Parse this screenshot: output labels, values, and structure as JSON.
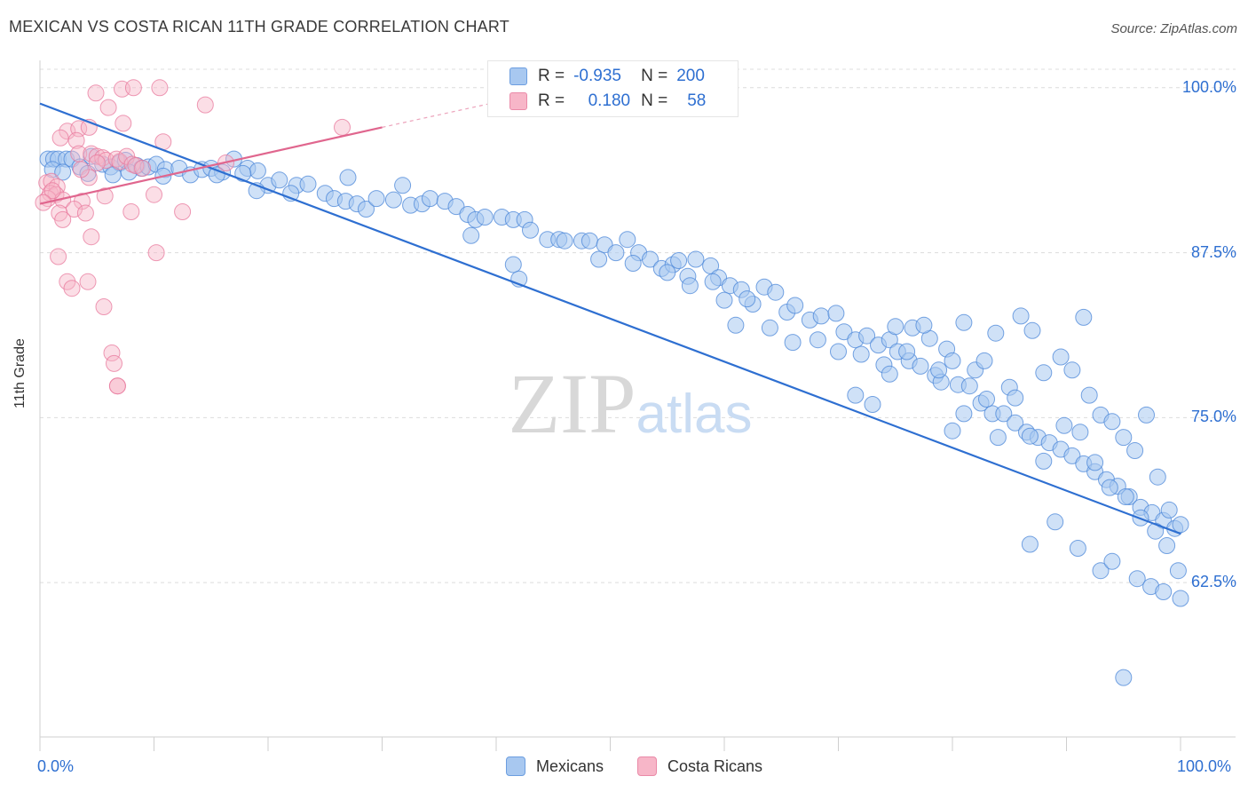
{
  "title": "MEXICAN VS COSTA RICAN 11TH GRADE CORRELATION CHART",
  "source": "Source: ZipAtlas.com",
  "watermark": "ZIPatlas",
  "legend": {
    "rows": [
      {
        "r_label": "R =",
        "r_value": "-0.935",
        "n_label": "N =",
        "n_value": "200",
        "color": "#a8c8f0"
      },
      {
        "r_label": "R =",
        "r_value": "0.180",
        "n_label": "N =",
        "n_value": "58",
        "color": "#f7b6c8"
      }
    ]
  },
  "bottom_legend": [
    {
      "label": "Mexicans",
      "color": "#a8c8f0"
    },
    {
      "label": "Costa Ricans",
      "color": "#f7b6c8"
    }
  ],
  "chart_data": {
    "type": "scatter",
    "title": "MEXICAN VS COSTA RICAN 11TH GRADE CORRELATION CHART",
    "xlabel": "",
    "ylabel": "11th Grade",
    "xlim": [
      0,
      100
    ],
    "ylim": [
      50.8,
      101.4
    ],
    "x_tick_labels": [
      "0.0%",
      "100.0%"
    ],
    "y_ticks": [
      62.5,
      75.0,
      87.5,
      100.0
    ],
    "y_tick_labels": [
      "62.5%",
      "75.0%",
      "87.5%",
      "100.0%"
    ],
    "grid": true,
    "legend_position": "top-center",
    "series": [
      {
        "name": "Mexicans",
        "color": "#4a86d8",
        "fill": "#a8c8f0",
        "r": -0.935,
        "n": 200,
        "trend": {
          "x": [
            0,
            100
          ],
          "y": [
            98.8,
            66.2
          ]
        },
        "points": [
          [
            0.7,
            94.6
          ],
          [
            1.2,
            94.6
          ],
          [
            1.6,
            94.6
          ],
          [
            2.3,
            94.6
          ],
          [
            2.8,
            94.6
          ],
          [
            4.5,
            94.8
          ],
          [
            1.1,
            93.8
          ],
          [
            3.5,
            94.0
          ],
          [
            5.5,
            94.2
          ],
          [
            6.2,
            94.0
          ],
          [
            7.0,
            94.3
          ],
          [
            7.5,
            94.5
          ],
          [
            8.5,
            94.1
          ],
          [
            8.9,
            93.9
          ],
          [
            9.5,
            94.0
          ],
          [
            10.2,
            94.2
          ],
          [
            11.0,
            93.8
          ],
          [
            12.2,
            93.9
          ],
          [
            10.8,
            93.3
          ],
          [
            13.2,
            93.4
          ],
          [
            14.2,
            93.8
          ],
          [
            15.0,
            93.9
          ],
          [
            16.0,
            93.6
          ],
          [
            17.0,
            94.6
          ],
          [
            18.2,
            93.9
          ],
          [
            19.1,
            93.7
          ],
          [
            17.8,
            93.5
          ],
          [
            7.8,
            93.6
          ],
          [
            4.2,
            93.5
          ],
          [
            6.4,
            93.4
          ],
          [
            2.0,
            93.6
          ],
          [
            15.5,
            93.4
          ],
          [
            20.0,
            92.6
          ],
          [
            21.0,
            93.0
          ],
          [
            22.5,
            92.6
          ],
          [
            23.5,
            92.7
          ],
          [
            22.0,
            92.0
          ],
          [
            19.0,
            92.2
          ],
          [
            25.0,
            92.0
          ],
          [
            25.8,
            91.6
          ],
          [
            26.8,
            91.4
          ],
          [
            27.8,
            91.2
          ],
          [
            28.6,
            90.8
          ],
          [
            29.5,
            91.6
          ],
          [
            31.0,
            91.5
          ],
          [
            32.5,
            91.1
          ],
          [
            31.8,
            92.6
          ],
          [
            33.5,
            91.2
          ],
          [
            34.2,
            91.6
          ],
          [
            35.5,
            91.4
          ],
          [
            36.5,
            91.0
          ],
          [
            37.5,
            90.4
          ],
          [
            38.2,
            90.0
          ],
          [
            39.0,
            90.2
          ],
          [
            40.5,
            90.2
          ],
          [
            41.5,
            90.0
          ],
          [
            42.5,
            90.0
          ],
          [
            43.0,
            89.2
          ],
          [
            44.5,
            88.5
          ],
          [
            45.5,
            88.5
          ],
          [
            46.0,
            88.4
          ],
          [
            47.5,
            88.4
          ],
          [
            48.2,
            88.4
          ],
          [
            49.5,
            88.1
          ],
          [
            50.5,
            87.5
          ],
          [
            51.5,
            88.5
          ],
          [
            52.5,
            87.5
          ],
          [
            53.5,
            87.0
          ],
          [
            54.5,
            86.3
          ],
          [
            55.5,
            86.6
          ],
          [
            56.0,
            86.9
          ],
          [
            57.5,
            87.0
          ],
          [
            56.8,
            85.7
          ],
          [
            58.8,
            86.5
          ],
          [
            59.5,
            85.6
          ],
          [
            60.5,
            85.0
          ],
          [
            60.0,
            83.9
          ],
          [
            61.5,
            84.7
          ],
          [
            62.5,
            83.6
          ],
          [
            63.5,
            84.9
          ],
          [
            64.5,
            84.5
          ],
          [
            65.5,
            83.0
          ],
          [
            66.2,
            83.5
          ],
          [
            67.5,
            82.4
          ],
          [
            68.5,
            82.7
          ],
          [
            69.8,
            82.9
          ],
          [
            70.5,
            81.5
          ],
          [
            71.5,
            80.9
          ],
          [
            72.5,
            81.2
          ],
          [
            73.5,
            80.5
          ],
          [
            74.5,
            80.9
          ],
          [
            75.2,
            80.0
          ],
          [
            76.2,
            79.3
          ],
          [
            77.2,
            78.9
          ],
          [
            78.5,
            78.2
          ],
          [
            79.0,
            77.7
          ],
          [
            80.5,
            77.5
          ],
          [
            81.5,
            77.4
          ],
          [
            82.5,
            76.1
          ],
          [
            83.5,
            75.3
          ],
          [
            84.5,
            75.3
          ],
          [
            85.5,
            74.6
          ],
          [
            86.5,
            73.9
          ],
          [
            87.5,
            73.5
          ],
          [
            88.5,
            73.1
          ],
          [
            89.5,
            72.6
          ],
          [
            90.5,
            72.1
          ],
          [
            91.5,
            71.5
          ],
          [
            92.5,
            70.9
          ],
          [
            93.5,
            70.3
          ],
          [
            94.5,
            69.8
          ],
          [
            95.5,
            69.0
          ],
          [
            96.5,
            68.2
          ],
          [
            97.5,
            67.8
          ],
          [
            98.5,
            67.2
          ],
          [
            99.5,
            66.6
          ],
          [
            27.0,
            93.2
          ],
          [
            37.8,
            88.8
          ],
          [
            41.5,
            86.6
          ],
          [
            42.0,
            85.5
          ],
          [
            49.0,
            87.0
          ],
          [
            52.0,
            86.7
          ],
          [
            55.0,
            86.0
          ],
          [
            57.0,
            85.0
          ],
          [
            59.0,
            85.3
          ],
          [
            61.0,
            82.0
          ],
          [
            62.0,
            84.0
          ],
          [
            64.0,
            81.8
          ],
          [
            66.0,
            80.7
          ],
          [
            68.2,
            80.9
          ],
          [
            70.0,
            80.0
          ],
          [
            72.0,
            79.8
          ],
          [
            74.0,
            79.0
          ],
          [
            75.0,
            81.9
          ],
          [
            76.5,
            81.8
          ],
          [
            78.0,
            81.0
          ],
          [
            79.5,
            80.2
          ],
          [
            80.0,
            79.3
          ],
          [
            81.0,
            82.2
          ],
          [
            82.0,
            78.6
          ],
          [
            82.8,
            79.3
          ],
          [
            83.8,
            81.4
          ],
          [
            85.0,
            77.3
          ],
          [
            86.0,
            82.7
          ],
          [
            87.0,
            81.6
          ],
          [
            88.0,
            78.4
          ],
          [
            89.5,
            79.6
          ],
          [
            90.5,
            78.6
          ],
          [
            91.5,
            82.6
          ],
          [
            92.0,
            76.7
          ],
          [
            93.0,
            75.2
          ],
          [
            94.0,
            74.7
          ],
          [
            95.0,
            73.5
          ],
          [
            96.0,
            72.5
          ],
          [
            97.0,
            75.2
          ],
          [
            98.0,
            70.5
          ],
          [
            99.0,
            68.0
          ],
          [
            100.0,
            66.9
          ],
          [
            71.5,
            76.7
          ],
          [
            73.0,
            76.0
          ],
          [
            74.5,
            78.3
          ],
          [
            76.0,
            80.0
          ],
          [
            77.5,
            82.0
          ],
          [
            78.8,
            78.6
          ],
          [
            80.0,
            74.0
          ],
          [
            81.0,
            75.3
          ],
          [
            83.0,
            76.4
          ],
          [
            84.0,
            73.5
          ],
          [
            85.5,
            76.5
          ],
          [
            86.8,
            73.6
          ],
          [
            88.0,
            71.7
          ],
          [
            89.8,
            74.4
          ],
          [
            91.2,
            73.9
          ],
          [
            92.5,
            71.6
          ],
          [
            93.8,
            69.7
          ],
          [
            95.2,
            69.0
          ],
          [
            96.5,
            67.4
          ],
          [
            97.8,
            66.4
          ],
          [
            98.8,
            65.3
          ],
          [
            99.8,
            63.4
          ],
          [
            100.0,
            61.3
          ],
          [
            95.0,
            55.3
          ],
          [
            86.8,
            65.4
          ],
          [
            89.0,
            67.1
          ],
          [
            91.0,
            65.1
          ],
          [
            93.0,
            63.4
          ],
          [
            94.0,
            64.1
          ],
          [
            96.2,
            62.8
          ],
          [
            97.4,
            62.2
          ],
          [
            98.5,
            61.8
          ]
        ]
      },
      {
        "name": "Costa Ricans",
        "color": "#e8789c",
        "fill": "#f7b6c8",
        "r": 0.18,
        "n": 58,
        "trend": {
          "x": [
            0,
            30
          ],
          "y": [
            91.2,
            97.0
          ]
        },
        "trend_dashed": {
          "x": [
            30,
            40
          ],
          "y": [
            97.0,
            98.9
          ]
        },
        "points": [
          [
            4.9,
            99.6
          ],
          [
            6.0,
            98.5
          ],
          [
            7.3,
            97.3
          ],
          [
            7.2,
            99.9
          ],
          [
            8.2,
            100.0
          ],
          [
            10.5,
            100.0
          ],
          [
            14.5,
            98.7
          ],
          [
            26.5,
            97.0
          ],
          [
            2.4,
            96.7
          ],
          [
            3.4,
            96.9
          ],
          [
            4.3,
            97.0
          ],
          [
            1.8,
            96.2
          ],
          [
            3.2,
            96.0
          ],
          [
            10.8,
            95.9
          ],
          [
            3.4,
            95.0
          ],
          [
            4.5,
            95.0
          ],
          [
            5.0,
            94.8
          ],
          [
            5.5,
            94.7
          ],
          [
            5.8,
            94.5
          ],
          [
            6.7,
            94.6
          ],
          [
            7.0,
            94.4
          ],
          [
            7.6,
            94.8
          ],
          [
            8.1,
            94.2
          ],
          [
            8.4,
            94.1
          ],
          [
            9.0,
            93.9
          ],
          [
            16.3,
            94.3
          ],
          [
            4.3,
            93.2
          ],
          [
            3.6,
            93.8
          ],
          [
            0.6,
            92.8
          ],
          [
            1.0,
            92.9
          ],
          [
            1.5,
            92.5
          ],
          [
            0.9,
            92.0
          ],
          [
            1.4,
            91.9
          ],
          [
            0.7,
            91.6
          ],
          [
            2.0,
            91.5
          ],
          [
            3.7,
            91.4
          ],
          [
            5.7,
            91.8
          ],
          [
            10.0,
            91.9
          ],
          [
            3.0,
            90.8
          ],
          [
            1.7,
            90.5
          ],
          [
            2.0,
            90.0
          ],
          [
            4.0,
            90.5
          ],
          [
            8.0,
            90.6
          ],
          [
            12.5,
            90.6
          ],
          [
            4.5,
            88.7
          ],
          [
            1.6,
            87.2
          ],
          [
            10.2,
            87.5
          ],
          [
            2.4,
            85.3
          ],
          [
            4.2,
            85.3
          ],
          [
            2.8,
            84.8
          ],
          [
            5.6,
            83.4
          ],
          [
            6.3,
            79.9
          ],
          [
            6.5,
            79.1
          ],
          [
            6.8,
            77.4
          ],
          [
            6.8,
            77.4
          ],
          [
            5.0,
            94.3
          ],
          [
            1.1,
            92.2
          ],
          [
            0.3,
            91.3
          ]
        ]
      }
    ]
  }
}
